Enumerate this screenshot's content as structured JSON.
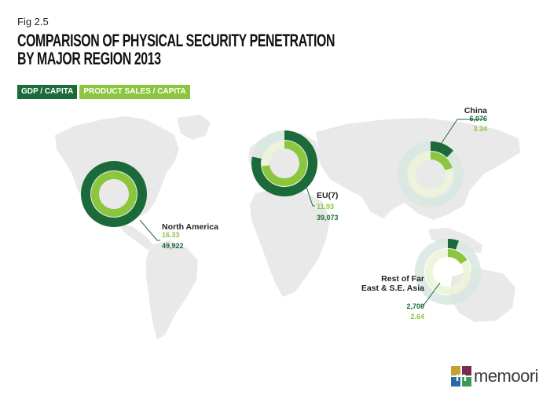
{
  "fig_label": "Fig 2.5",
  "title_line1": "COMPARISON OF PHYSICAL SECURITY PENETRATION",
  "title_line2": "BY MAJOR REGION 2013",
  "colors": {
    "gdp": "#1b6b3a",
    "sales": "#8cc63f",
    "land": "#e9e9e9",
    "ring_bg": "#d7e8df",
    "ring_bg2": "#ecf4d9"
  },
  "logo": {
    "text": "memoori"
  },
  "chart_data": {
    "type": "donut",
    "legend": [
      "GDP / CAPITA",
      "PRODUCT SALES / CAPITA"
    ],
    "regions": [
      {
        "name": "North America",
        "gdp_per_capita": 49922,
        "gdp_label": "49,922",
        "sales_per_capita": 16.33,
        "sales_label": "16.33"
      },
      {
        "name": "EU(7)",
        "gdp_per_capita": 39073,
        "gdp_label": "39,073",
        "sales_per_capita": 11.93,
        "sales_label": "11.93"
      },
      {
        "name": "China",
        "gdp_per_capita": 6076,
        "gdp_label": "6,076",
        "sales_per_capita": 3.34,
        "sales_label": "3.34"
      },
      {
        "name": "Rest of Far East & S.E. Asia",
        "name_lines": [
          "Rest of Far",
          "East & S.E. Asia"
        ],
        "gdp_per_capita": 2700,
        "gdp_label": "2,700",
        "sales_per_capita": 2.64,
        "sales_label": "2.64"
      }
    ]
  }
}
